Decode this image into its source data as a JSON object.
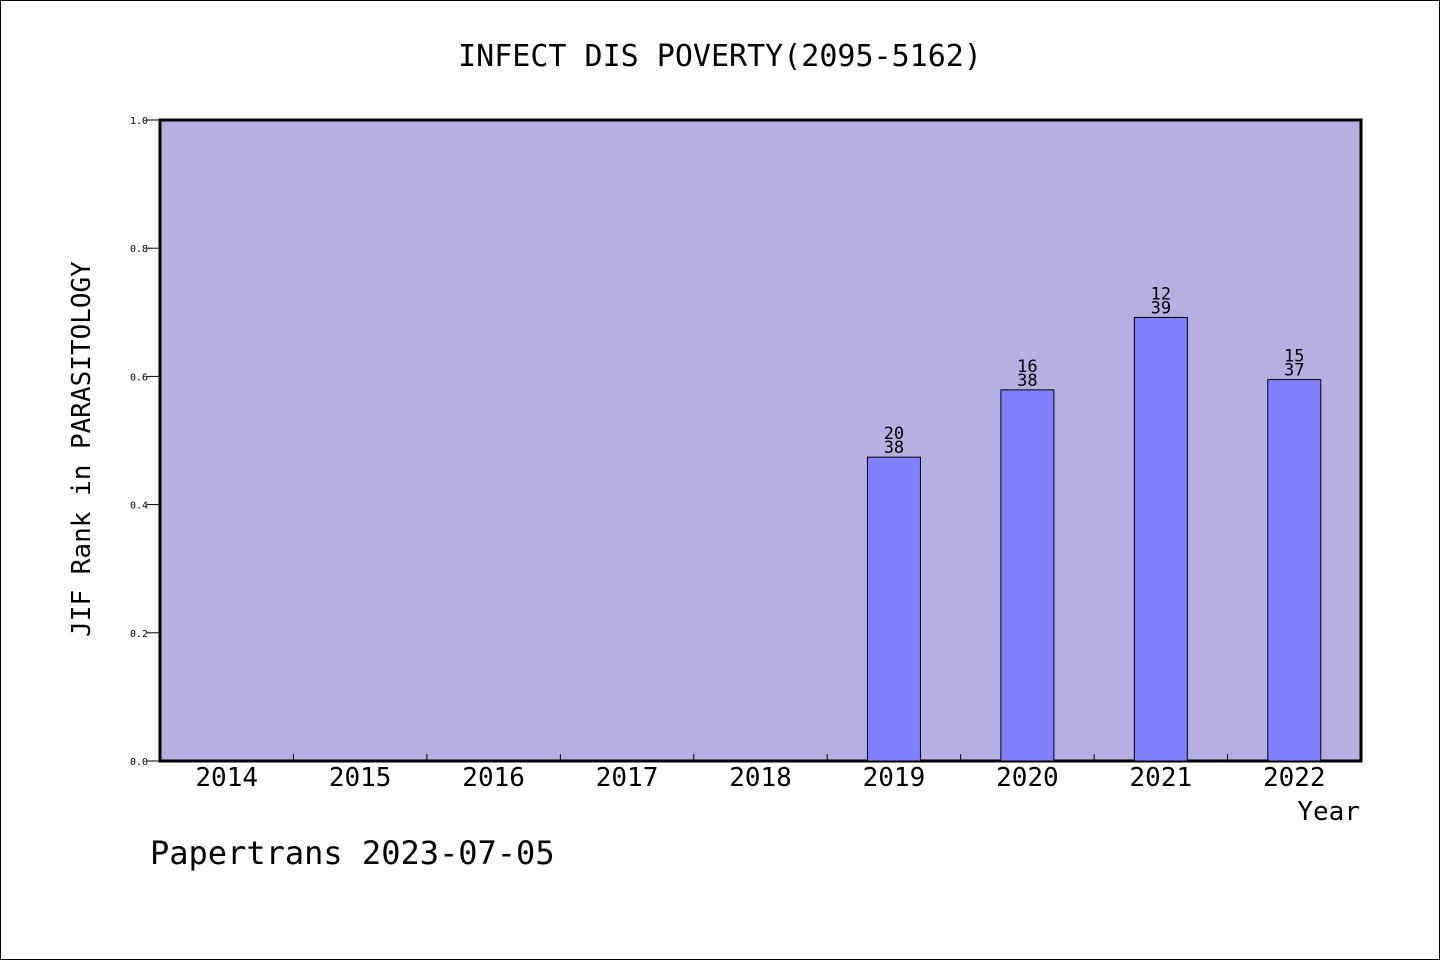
{
  "chart_data": {
    "type": "bar",
    "title": "INFECT DIS POVERTY(2095-5162)",
    "xlabel": "Year",
    "ylabel": "JIF Rank in PARASITOLOGY",
    "ylim": [
      0,
      1.0
    ],
    "yticks": [
      "0.0",
      "0.2",
      "0.4",
      "0.6",
      "0.8",
      "1.0"
    ],
    "categories": [
      "2014",
      "2015",
      "2016",
      "2017",
      "2018",
      "2019",
      "2020",
      "2021",
      "2022"
    ],
    "values": [
      null,
      null,
      null,
      null,
      null,
      0.474,
      0.579,
      0.692,
      0.595
    ],
    "rank_labels": [
      null,
      null,
      null,
      null,
      null,
      {
        "rank": "20",
        "total": "38"
      },
      {
        "rank": "16",
        "total": "38"
      },
      {
        "rank": "12",
        "total": "39"
      },
      {
        "rank": "15",
        "total": "37"
      }
    ],
    "grid": false,
    "colors": {
      "plot_background": "#b6b0e2",
      "bar_fill": "#8080ff",
      "bar_stroke": "#000000"
    }
  },
  "footer": "Papertrans 2023-07-05"
}
